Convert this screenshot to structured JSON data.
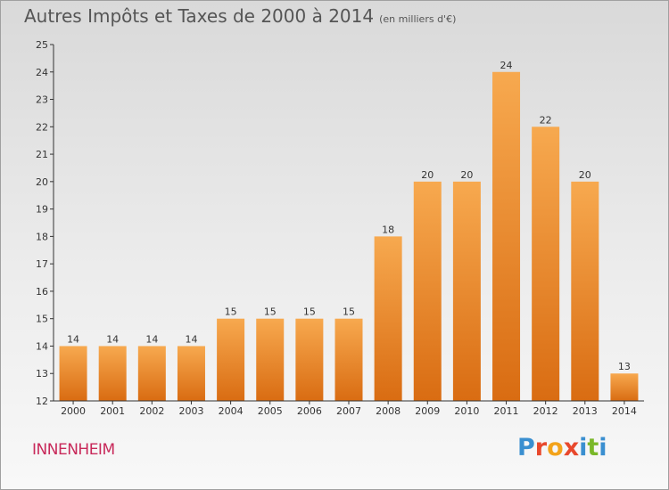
{
  "header": {
    "title": "Autres Impôts et Taxes de 2000 à 2014",
    "unit": "(en milliers d'€)"
  },
  "footer": {
    "town": "INNENHEIM",
    "logo": "Proxiti",
    "logo_colors": [
      "#3a8fd0",
      "#e8482c",
      "#f3a31a",
      "#e8482c",
      "#3a8fd0",
      "#7ab829",
      "#3a8fd0"
    ]
  },
  "colors": {
    "bar_top": "#f7a94f",
    "bar_bottom": "#d96c12",
    "axis": "#333333",
    "grid": "#bfbfbf"
  },
  "chart_data": {
    "type": "bar",
    "title": "Autres Impôts et Taxes de 2000 à 2014",
    "subtitle": "(en milliers d'€)",
    "xlabel": "",
    "ylabel": "",
    "categories": [
      "2000",
      "2001",
      "2002",
      "2003",
      "2004",
      "2005",
      "2006",
      "2007",
      "2008",
      "2009",
      "2010",
      "2011",
      "2012",
      "2013",
      "2014"
    ],
    "values": [
      14,
      14,
      14,
      14,
      15,
      15,
      15,
      15,
      18,
      20,
      20,
      24,
      22,
      20,
      13
    ],
    "ylim": [
      12,
      25
    ],
    "yticks": [
      12,
      13,
      14,
      15,
      16,
      17,
      18,
      19,
      20,
      21,
      22,
      23,
      24,
      25
    ],
    "grid": false,
    "legend": "none"
  }
}
